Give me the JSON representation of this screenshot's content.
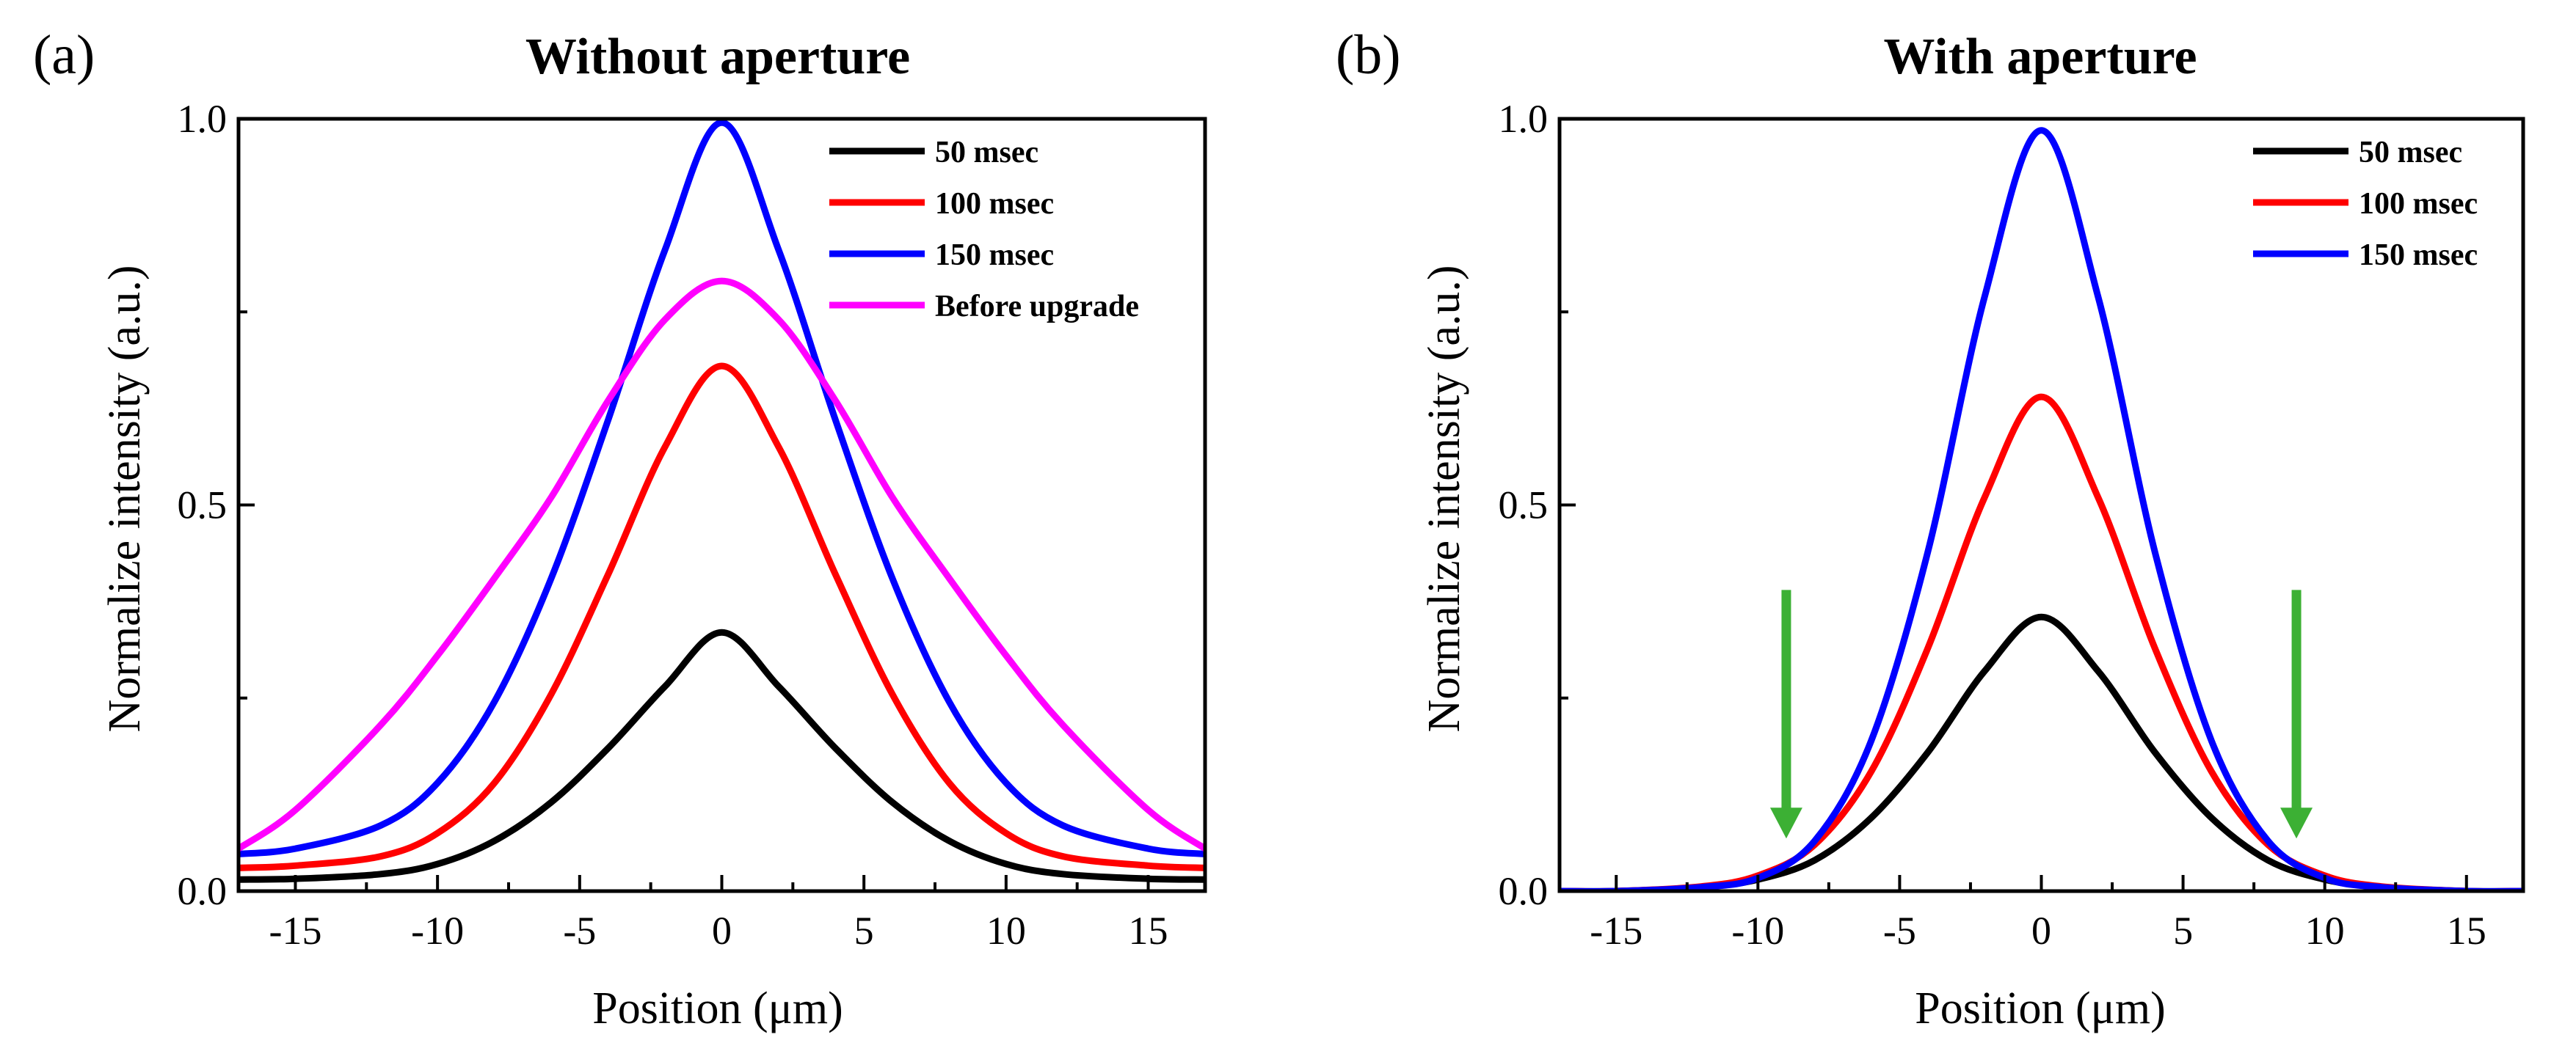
{
  "chart_data": [
    {
      "type": "line",
      "panel_label": "(a)",
      "title": "Without aperture",
      "xlabel": "Position (μm)",
      "ylabel": "Normalize intensity (a.u.)",
      "xlim": [
        -17,
        17
      ],
      "ylim": [
        0,
        1.0
      ],
      "x_ticks": [
        -15,
        -10,
        -5,
        0,
        5,
        10,
        15
      ],
      "x_tick_labels": [
        "-15",
        "-10",
        "-5",
        "0",
        "5",
        "10",
        "15"
      ],
      "y_ticks": [
        0.0,
        0.5,
        1.0
      ],
      "y_tick_labels": [
        "0.0",
        "0.5",
        "1.0"
      ],
      "grid": false,
      "legend_position": "top-right",
      "series": [
        {
          "name": "50 msec",
          "color": "#000000",
          "x": [
            -17,
            -15,
            -12,
            -10,
            -8,
            -6,
            -4,
            -2,
            0,
            2,
            4,
            6,
            8,
            10,
            12,
            15,
            17
          ],
          "y": [
            0.015,
            0.016,
            0.022,
            0.035,
            0.065,
            0.115,
            0.185,
            0.265,
            0.335,
            0.265,
            0.185,
            0.115,
            0.065,
            0.035,
            0.022,
            0.016,
            0.015
          ]
        },
        {
          "name": "100 msec",
          "color": "#ff0000",
          "x": [
            -17,
            -15,
            -12,
            -10,
            -8,
            -6,
            -4,
            -2,
            0,
            2,
            4,
            6,
            8,
            10,
            12,
            15,
            17
          ],
          "y": [
            0.03,
            0.033,
            0.045,
            0.075,
            0.14,
            0.255,
            0.41,
            0.575,
            0.68,
            0.575,
            0.41,
            0.255,
            0.14,
            0.075,
            0.045,
            0.033,
            0.03
          ]
        },
        {
          "name": "150 msec",
          "color": "#0000ff",
          "x": [
            -17,
            -15,
            -12,
            -10,
            -8,
            -6,
            -4,
            -2,
            0,
            2,
            4,
            6,
            8,
            10,
            12,
            15,
            17
          ],
          "y": [
            0.048,
            0.055,
            0.085,
            0.14,
            0.245,
            0.405,
            0.61,
            0.83,
            0.995,
            0.83,
            0.61,
            0.405,
            0.245,
            0.14,
            0.085,
            0.055,
            0.048
          ]
        },
        {
          "name": "Before upgrade",
          "color": "#ff00ff",
          "x": [
            -17,
            -15,
            -12,
            -10,
            -8,
            -6,
            -4,
            -2,
            0,
            2,
            4,
            6,
            8,
            10,
            12,
            15,
            17
          ],
          "y": [
            0.055,
            0.105,
            0.215,
            0.305,
            0.405,
            0.51,
            0.635,
            0.74,
            0.79,
            0.74,
            0.635,
            0.51,
            0.405,
            0.305,
            0.215,
            0.105,
            0.055
          ]
        }
      ]
    },
    {
      "type": "line",
      "panel_label": "(b)",
      "title": "With aperture",
      "xlabel": "Position (μm)",
      "ylabel": "Normalize intensity (a.u.)",
      "xlim": [
        -17,
        17
      ],
      "ylim": [
        0,
        1.0
      ],
      "x_ticks": [
        -15,
        -10,
        -5,
        0,
        5,
        10,
        15
      ],
      "x_tick_labels": [
        "-15",
        "-10",
        "-5",
        "0",
        "5",
        "10",
        "15"
      ],
      "y_ticks": [
        0.0,
        0.5,
        1.0
      ],
      "y_tick_labels": [
        "0.0",
        "0.5",
        "1.0"
      ],
      "grid": false,
      "legend_position": "top-right",
      "series": [
        {
          "name": "50 msec",
          "color": "#000000",
          "x": [
            -17,
            -15,
            -12,
            -10,
            -8,
            -6,
            -4,
            -2,
            0,
            2,
            4,
            6,
            8,
            10,
            12,
            15,
            17
          ],
          "y": [
            0.0,
            0.0,
            0.005,
            0.015,
            0.04,
            0.095,
            0.18,
            0.285,
            0.355,
            0.285,
            0.18,
            0.095,
            0.04,
            0.015,
            0.005,
            0.0,
            0.0
          ]
        },
        {
          "name": "100 msec",
          "color": "#ff0000",
          "x": [
            -17,
            -15,
            -12,
            -10,
            -8,
            -6,
            -4,
            -2,
            0,
            2,
            4,
            6,
            8,
            10,
            12,
            15,
            17
          ],
          "y": [
            0.0,
            0.0,
            0.006,
            0.02,
            0.06,
            0.155,
            0.315,
            0.51,
            0.64,
            0.51,
            0.315,
            0.155,
            0.06,
            0.02,
            0.006,
            0.0,
            0.0
          ]
        },
        {
          "name": "150 msec",
          "color": "#0000ff",
          "x": [
            -17,
            -15,
            -12,
            -10,
            -8,
            -6,
            -4,
            -2,
            0,
            2,
            4,
            6,
            8,
            10,
            12,
            15,
            17
          ],
          "y": [
            0.0,
            0.0,
            0.005,
            0.017,
            0.065,
            0.195,
            0.44,
            0.77,
            0.985,
            0.77,
            0.44,
            0.195,
            0.065,
            0.017,
            0.005,
            0.0,
            0.0
          ]
        }
      ],
      "annotations": [
        {
          "type": "arrow",
          "color": "#3cb034",
          "x": -9,
          "y_from": 0.39,
          "y_to": 0.07
        },
        {
          "type": "arrow",
          "color": "#3cb034",
          "x": 9,
          "y_from": 0.39,
          "y_to": 0.07
        }
      ]
    }
  ]
}
